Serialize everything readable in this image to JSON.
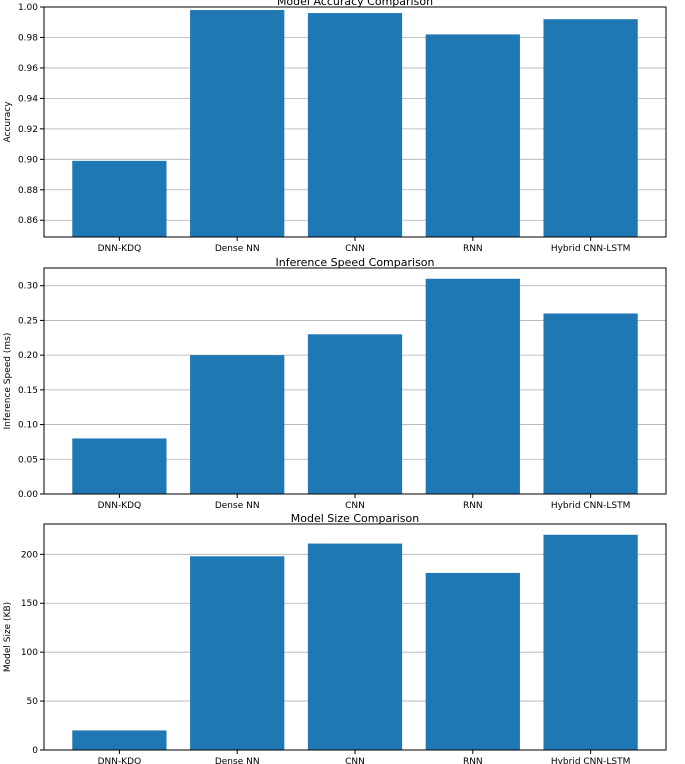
{
  "chart_data": [
    {
      "type": "bar",
      "title": "Model Accuracy Comparison",
      "xlabel": "",
      "ylabel": "Accuracy",
      "categories": [
        "DNN-KDQ",
        "Dense NN",
        "CNN",
        "RNN",
        "Hybrid CNN-LSTM"
      ],
      "values": [
        0.899,
        0.998,
        0.996,
        0.982,
        0.992
      ],
      "ylim": [
        0.849,
        1.0
      ],
      "yticks": [
        0.86,
        0.88,
        0.9,
        0.92,
        0.94,
        0.96,
        0.98,
        1.0
      ],
      "ytick_labels": [
        "0.86",
        "0.88",
        "0.90",
        "0.92",
        "0.94",
        "0.96",
        "0.98",
        "1.00"
      ],
      "grid": "y",
      "bar_color": "#1f77b4"
    },
    {
      "type": "bar",
      "title": "Inference Speed Comparison",
      "xlabel": "",
      "ylabel": "Inference Speed (ms)",
      "categories": [
        "DNN-KDQ",
        "Dense NN",
        "CNN",
        "RNN",
        "Hybrid CNN-LSTM"
      ],
      "values": [
        0.08,
        0.2,
        0.23,
        0.31,
        0.26
      ],
      "ylim": [
        0,
        0.3255
      ],
      "yticks": [
        0,
        0.05,
        0.1,
        0.15,
        0.2,
        0.25,
        0.3
      ],
      "ytick_labels": [
        "0.00",
        "0.05",
        "0.10",
        "0.15",
        "0.20",
        "0.25",
        "0.30"
      ],
      "grid": "y",
      "bar_color": "#1f77b4"
    },
    {
      "type": "bar",
      "title": "Model Size Comparison",
      "xlabel": "",
      "ylabel": "Model Size (KB)",
      "categories": [
        "DNN-KDQ",
        "Dense NN",
        "CNN",
        "RNN",
        "Hybrid CNN-LSTM"
      ],
      "values": [
        20,
        198,
        211,
        181,
        220
      ],
      "ylim": [
        0,
        231
      ],
      "yticks": [
        0,
        50,
        100,
        150,
        200
      ],
      "ytick_labels": [
        "0",
        "50",
        "100",
        "150",
        "200"
      ],
      "grid": "y",
      "bar_color": "#1f77b4"
    }
  ]
}
